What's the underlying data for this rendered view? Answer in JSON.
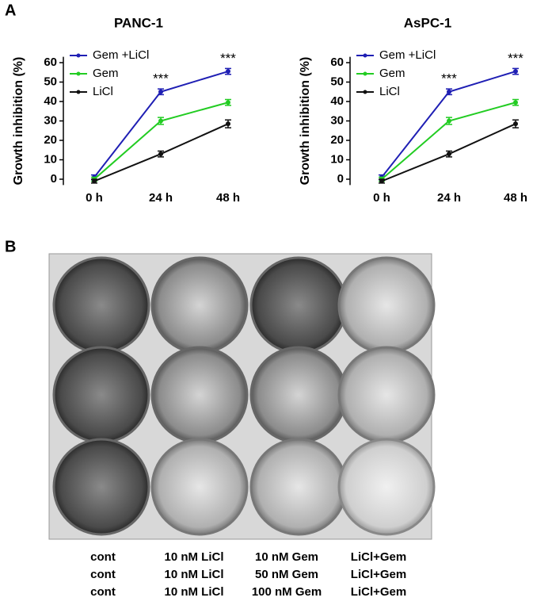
{
  "panel_labels": [
    "A",
    "B"
  ],
  "chart_data": [
    {
      "type": "line",
      "title": "PANC-1",
      "ylabel": "Growth inhibition (%)",
      "categories": [
        "0 h",
        "24 h",
        "48 h"
      ],
      "series": [
        {
          "name": "Gem +LiCl",
          "color": "#1f1fb4",
          "values": [
            1,
            45,
            55.5
          ],
          "errors": [
            1.2,
            1.5,
            1.5
          ]
        },
        {
          "name": "Gem",
          "color": "#22cc22",
          "values": [
            0,
            30,
            39.5
          ],
          "errors": [
            1,
            1.8,
            1.5
          ]
        },
        {
          "name": "LiCl",
          "color": "#111111",
          "values": [
            -1,
            13,
            28.5
          ],
          "errors": [
            1,
            1.5,
            2
          ]
        }
      ],
      "ylim": [
        -3,
        63
      ],
      "yticks": [
        0,
        10,
        20,
        30,
        40,
        50,
        60
      ],
      "legend": "upper-left",
      "annotations": [
        "***",
        "***"
      ]
    },
    {
      "type": "line",
      "title": "AsPC-1",
      "ylabel": "Growth inhibition (%)",
      "categories": [
        "0 h",
        "24 h",
        "48 h"
      ],
      "series": [
        {
          "name": "Gem +LiCl",
          "color": "#1f1fb4",
          "values": [
            1,
            45,
            55.5
          ],
          "errors": [
            1.2,
            1.5,
            1.5
          ]
        },
        {
          "name": "Gem",
          "color": "#22cc22",
          "values": [
            0,
            30,
            39.5
          ],
          "errors": [
            1,
            1.8,
            1.5
          ]
        },
        {
          "name": "LiCl",
          "color": "#111111",
          "values": [
            -1,
            13,
            28.5
          ],
          "errors": [
            1,
            1.5,
            2
          ]
        }
      ],
      "ylim": [
        -3,
        63
      ],
      "yticks": [
        0,
        10,
        20,
        30,
        40,
        50,
        60
      ],
      "legend": "upper-left",
      "annotations": [
        "***",
        "***"
      ]
    }
  ],
  "plate": {
    "rows": [
      [
        "cont",
        "10 nM LiCl",
        "10 nM Gem",
        "LiCl+Gem"
      ],
      [
        "cont",
        "10 nM LiCl",
        "50 nM Gem",
        "LiCl+Gem"
      ],
      [
        "cont",
        "10 nM LiCl",
        "100 nM Gem",
        "LiCl+Gem"
      ]
    ]
  }
}
